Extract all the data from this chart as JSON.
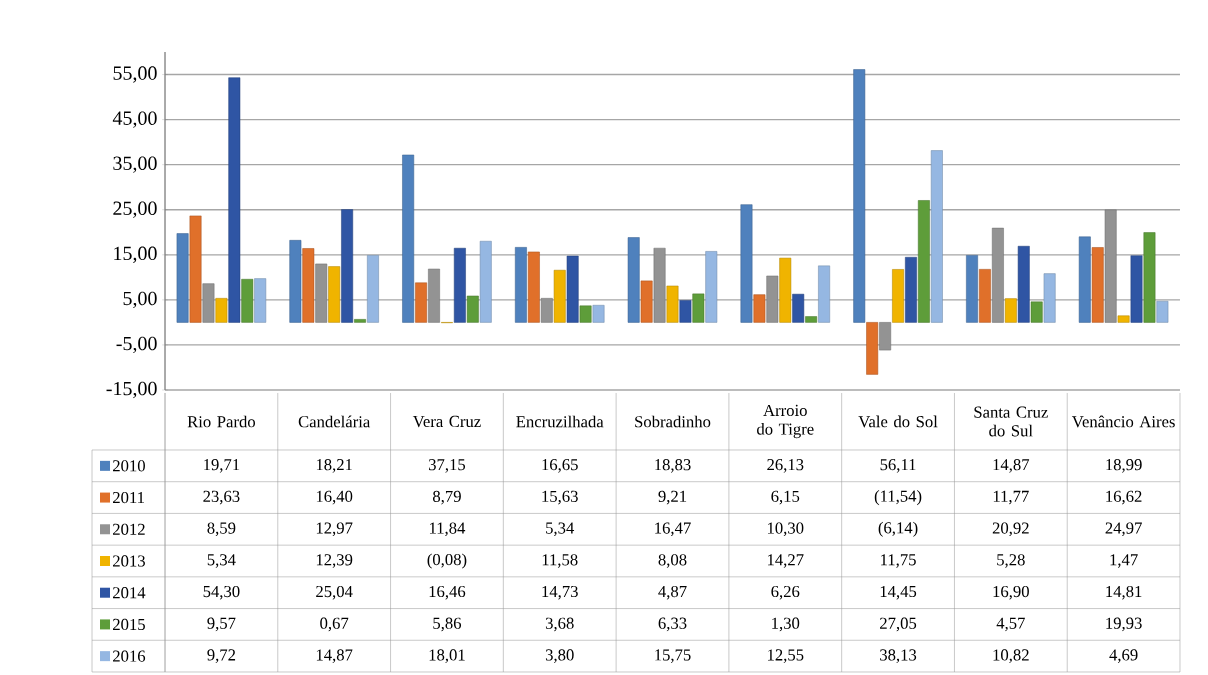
{
  "chart_data": {
    "type": "bar",
    "categories": [
      "Rio Pardo",
      "Candelária",
      "Vera Cruz",
      "Encruzilhada",
      "Sobradinho",
      "Arroio do Tigre",
      "Vale do Sol",
      "Santa Cruz do Sul",
      "Venâncio Aires"
    ],
    "series": [
      {
        "name": "2010",
        "color": "#4f81bd",
        "values": [
          19.71,
          18.21,
          37.15,
          16.65,
          18.83,
          26.13,
          56.11,
          14.87,
          18.99
        ],
        "value_labels": [
          "19,71",
          "18,21",
          "37,15",
          "16,65",
          "18,83",
          "26,13",
          "56,11",
          "14,87",
          "18,99"
        ]
      },
      {
        "name": "2011",
        "color": "#e0702a",
        "values": [
          23.63,
          16.4,
          8.79,
          15.63,
          9.21,
          6.15,
          -11.54,
          11.77,
          16.62
        ],
        "value_labels": [
          "23,63",
          "16,40",
          "8,79",
          "15,63",
          "9,21",
          "6,15",
          "(11,54)",
          "11,77",
          "16,62"
        ]
      },
      {
        "name": "2012",
        "color": "#939393",
        "values": [
          8.59,
          12.97,
          11.84,
          5.34,
          16.47,
          10.3,
          -6.14,
          20.92,
          24.97
        ],
        "value_labels": [
          "8,59",
          "12,97",
          "11,84",
          "5,34",
          "16,47",
          "10,30",
          "(6,14)",
          "20,92",
          "24,97"
        ]
      },
      {
        "name": "2013",
        "color": "#f0b400",
        "values": [
          5.34,
          12.39,
          -0.08,
          11.58,
          8.08,
          14.27,
          11.75,
          5.28,
          1.47
        ],
        "value_labels": [
          "5,34",
          "12,39",
          "(0,08)",
          "11,58",
          "8,08",
          "14,27",
          "11,75",
          "5,28",
          "1,47"
        ]
      },
      {
        "name": "2014",
        "color": "#2f55a4",
        "values": [
          54.3,
          25.04,
          16.46,
          14.73,
          4.87,
          6.26,
          14.45,
          16.9,
          14.81
        ],
        "value_labels": [
          "54,30",
          "25,04",
          "16,46",
          "14,73",
          "4,87",
          "6,26",
          "14,45",
          "16,90",
          "14,81"
        ]
      },
      {
        "name": "2015",
        "color": "#5e9d3a",
        "values": [
          9.57,
          0.67,
          5.86,
          3.68,
          6.33,
          1.3,
          27.05,
          4.57,
          19.93
        ],
        "value_labels": [
          "9,57",
          "0,67",
          "5,86",
          "3,68",
          "6,33",
          "1,30",
          "27,05",
          "4,57",
          "19,93"
        ]
      },
      {
        "name": "2016",
        "color": "#95b7e2",
        "values": [
          9.72,
          14.87,
          18.01,
          3.8,
          15.75,
          12.55,
          38.13,
          10.82,
          4.69
        ],
        "value_labels": [
          "9,72",
          "14,87",
          "18,01",
          "3,80",
          "15,75",
          "12,55",
          "38,13",
          "10,82",
          "4,69"
        ]
      }
    ],
    "ylim": [
      -15,
      60
    ],
    "yticks": [
      {
        "value": -15,
        "label": "-15,00"
      },
      {
        "value": -5,
        "label": "-5,00"
      },
      {
        "value": 5,
        "label": "5,00"
      },
      {
        "value": 15,
        "label": "15,00"
      },
      {
        "value": 25,
        "label": "25,00"
      },
      {
        "value": 35,
        "label": "35,00"
      },
      {
        "value": 45,
        "label": "45,00"
      },
      {
        "value": 55,
        "label": "55,00"
      }
    ],
    "grid": "y",
    "legend": "bottom left"
  }
}
